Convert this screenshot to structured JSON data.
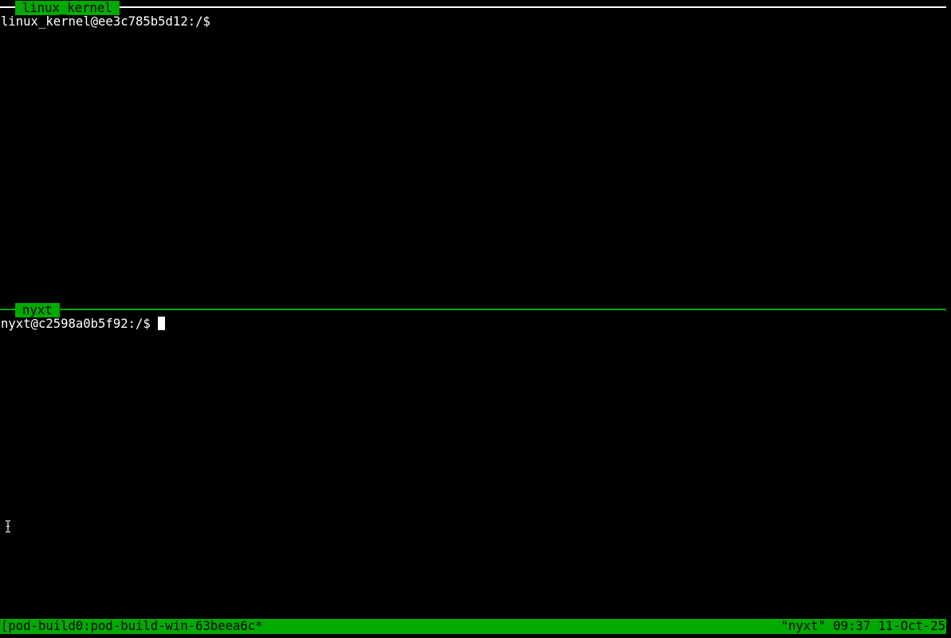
{
  "panes": [
    {
      "title": "linux_kernel",
      "prompt": "linux_kernel@ee3c785b5d12:/$",
      "active": false
    },
    {
      "title": "nyxt",
      "prompt": "nyxt@c2598a0b5f92:/$ ",
      "active": true
    }
  ],
  "status_bar": {
    "left": "[pod-build0:pod-build-win-63beea6c*",
    "right": "\"nyxt\" 09:37 11-Oct-25"
  },
  "colors": {
    "accent": "#00aa00",
    "inactive_border": "#ffffff",
    "background": "#000000"
  },
  "icons": {
    "mouse_cursor": "i-beam-cursor-icon"
  }
}
